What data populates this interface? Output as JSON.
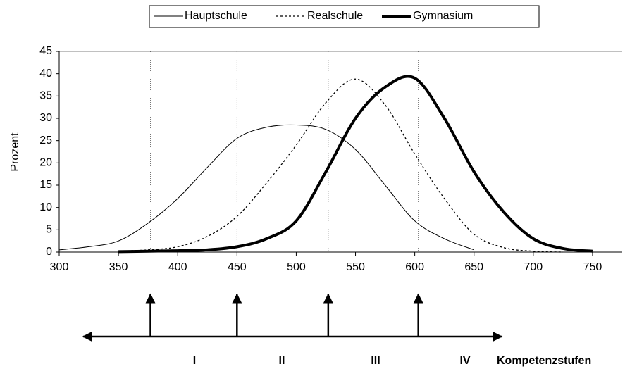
{
  "chart_data": {
    "type": "line",
    "ylabel": "Prozent",
    "x": [
      300,
      325,
      350,
      375,
      400,
      425,
      450,
      475,
      500,
      525,
      550,
      575,
      600,
      625,
      650,
      675,
      700,
      725,
      750
    ],
    "series": [
      {
        "name": "Hauptschule",
        "color": "#000000",
        "width": 1,
        "dash": "none",
        "values": [
          0.5,
          1.2,
          2.5,
          6.5,
          12,
          19,
          25.5,
          28,
          28.5,
          27.5,
          23,
          15,
          7,
          3,
          0.5,
          null,
          null,
          null,
          null
        ]
      },
      {
        "name": "Realschule",
        "color": "#000000",
        "width": 1.3,
        "dash": "3 3",
        "values": [
          null,
          null,
          0.2,
          0.5,
          1.2,
          3.5,
          8,
          15.5,
          24,
          33.5,
          38.8,
          33,
          22,
          12,
          4,
          1,
          0.2,
          0,
          null
        ]
      },
      {
        "name": "Gymnasium",
        "color": "#000000",
        "width": 4,
        "dash": "none",
        "values": [
          null,
          null,
          0.1,
          0.2,
          0.3,
          0.5,
          1.2,
          3,
          7,
          18,
          30,
          37,
          39,
          30,
          18,
          9,
          3,
          0.8,
          0.2
        ]
      }
    ],
    "xlim": [
      300,
      775
    ],
    "xticks": [
      300,
      350,
      400,
      450,
      500,
      550,
      600,
      650,
      700,
      750
    ],
    "ylim": [
      0,
      45
    ],
    "yticks": [
      0,
      5,
      10,
      15,
      20,
      25,
      30,
      35,
      40,
      45
    ],
    "level_lines": [
      377,
      450,
      527,
      603
    ],
    "levels": [
      "I",
      "II",
      "III",
      "IV"
    ],
    "levels_label": "Kompetenzstufen",
    "legend": "top"
  }
}
